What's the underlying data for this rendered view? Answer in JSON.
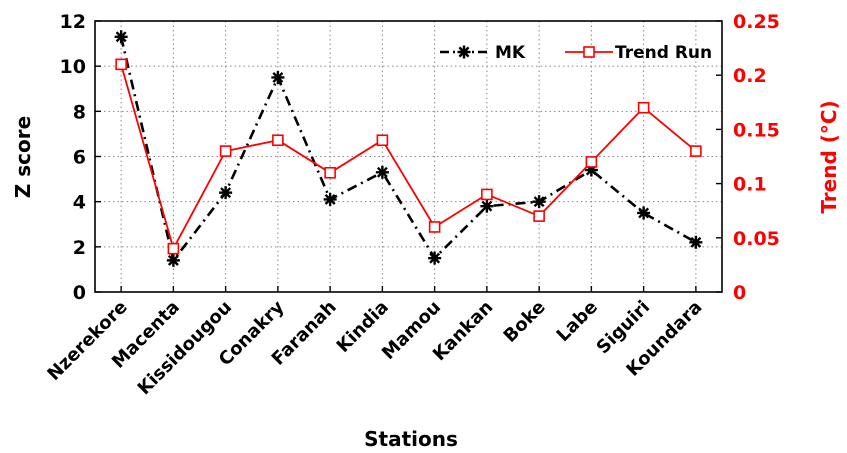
{
  "chart_data": {
    "type": "line",
    "categories": [
      "Nzerekore",
      "Macenta",
      "Kissidougou",
      "Conakry",
      "Faranah",
      "Kindia",
      "Mamou",
      "Kankan",
      "Boke",
      "Labe",
      "Siguiri",
      "Koundara"
    ],
    "xlabel": "Stations",
    "ylabel_left": "Z score",
    "ylabel_right": "Trend (°C)",
    "ylim_left": [
      0,
      12
    ],
    "ylim_right": [
      0,
      0.25
    ],
    "yticks_left": [
      "0",
      "2",
      "4",
      "6",
      "8",
      "10",
      "12"
    ],
    "yticks_right": [
      "0",
      "0.05",
      "0.1",
      "0.15",
      "0.2",
      "0.25"
    ],
    "grid": true,
    "legend_position": "top-right",
    "series": [
      {
        "name": "MK",
        "axis": "left",
        "color": "#000000",
        "line_style": "dash-dot",
        "marker": "asterisk",
        "values": [
          11.3,
          1.4,
          4.4,
          9.5,
          4.1,
          5.3,
          1.5,
          3.8,
          4.0,
          5.4,
          3.5,
          2.2
        ]
      },
      {
        "name": "Trend Run",
        "axis": "right",
        "color": "#ff0000",
        "line_style": "solid",
        "marker": "open-square",
        "values": [
          0.21,
          0.04,
          0.13,
          0.14,
          0.11,
          0.14,
          0.06,
          0.09,
          0.07,
          0.12,
          0.17,
          0.13
        ]
      }
    ]
  }
}
